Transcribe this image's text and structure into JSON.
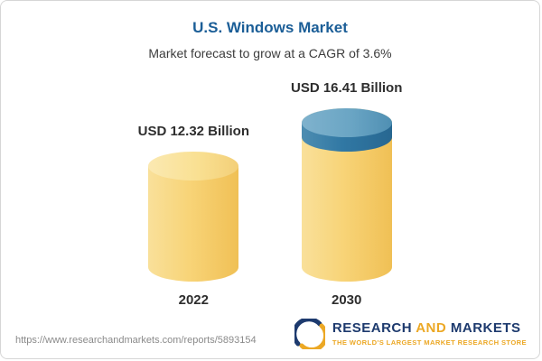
{
  "header": {
    "title": "U.S. Windows Market",
    "subtitle": "Market forecast to grow at a CAGR of 3.6%"
  },
  "chart_data": {
    "type": "bar",
    "title": "U.S. Windows Market",
    "subtitle": "Market forecast to grow at a CAGR of 3.6%",
    "categories": [
      "2022",
      "2030"
    ],
    "values": [
      12.32,
      16.41
    ],
    "value_labels": [
      "USD 12.32 Billion",
      "USD 16.41 Billion"
    ],
    "unit": "USD Billion",
    "cagr": "3.6%",
    "colors": {
      "bar_yellow": "#f8d478",
      "growth_cap_blue": "#3178a4",
      "title_blue": "#1b5e97"
    },
    "legend_position": "none",
    "grid": false
  },
  "footer": {
    "url": "https://www.researchandmarkets.com/reports/5893154",
    "logo": {
      "research": "RESEARCH",
      "and": "AND",
      "markets": "MARKETS",
      "tagline": "THE WORLD'S LARGEST MARKET RESEARCH STORE"
    }
  }
}
